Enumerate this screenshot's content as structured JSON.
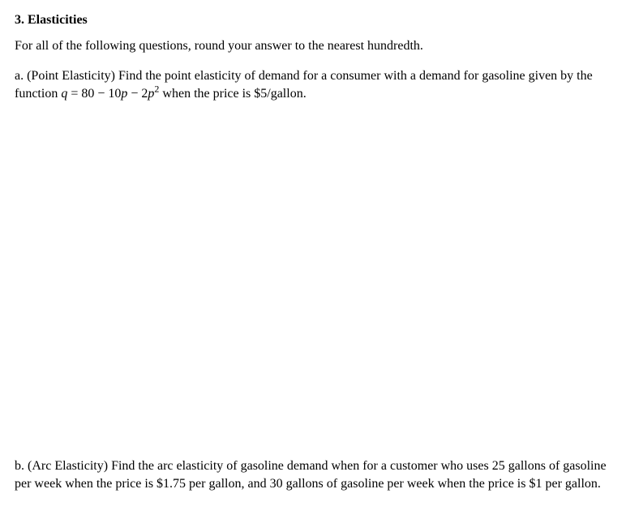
{
  "section": {
    "number": "3.",
    "title": "Elasticities"
  },
  "instruction": "For all of the following questions, round your answer to the nearest hundredth.",
  "qa": {
    "label": "a. (Point Elasticity) ",
    "text1": "Find the point elasticity of demand for a consumer with a demand for gasoline given by the function ",
    "eq_q": "q",
    "eq_mid": " = 80 − 10",
    "eq_p1": "p",
    "eq_minus": " − 2",
    "eq_p2": "p",
    "eq_exp": "2",
    "text2": " when the price is $5/gallon."
  },
  "qb": {
    "label": "b. (Arc Elasticity) ",
    "text": "Find the arc elasticity of gasoline demand when for a customer who uses 25 gallons of gasoline per week when the price is $1.75 per gallon, and 30 gallons of gasoline per week when the price is $1 per gallon."
  }
}
